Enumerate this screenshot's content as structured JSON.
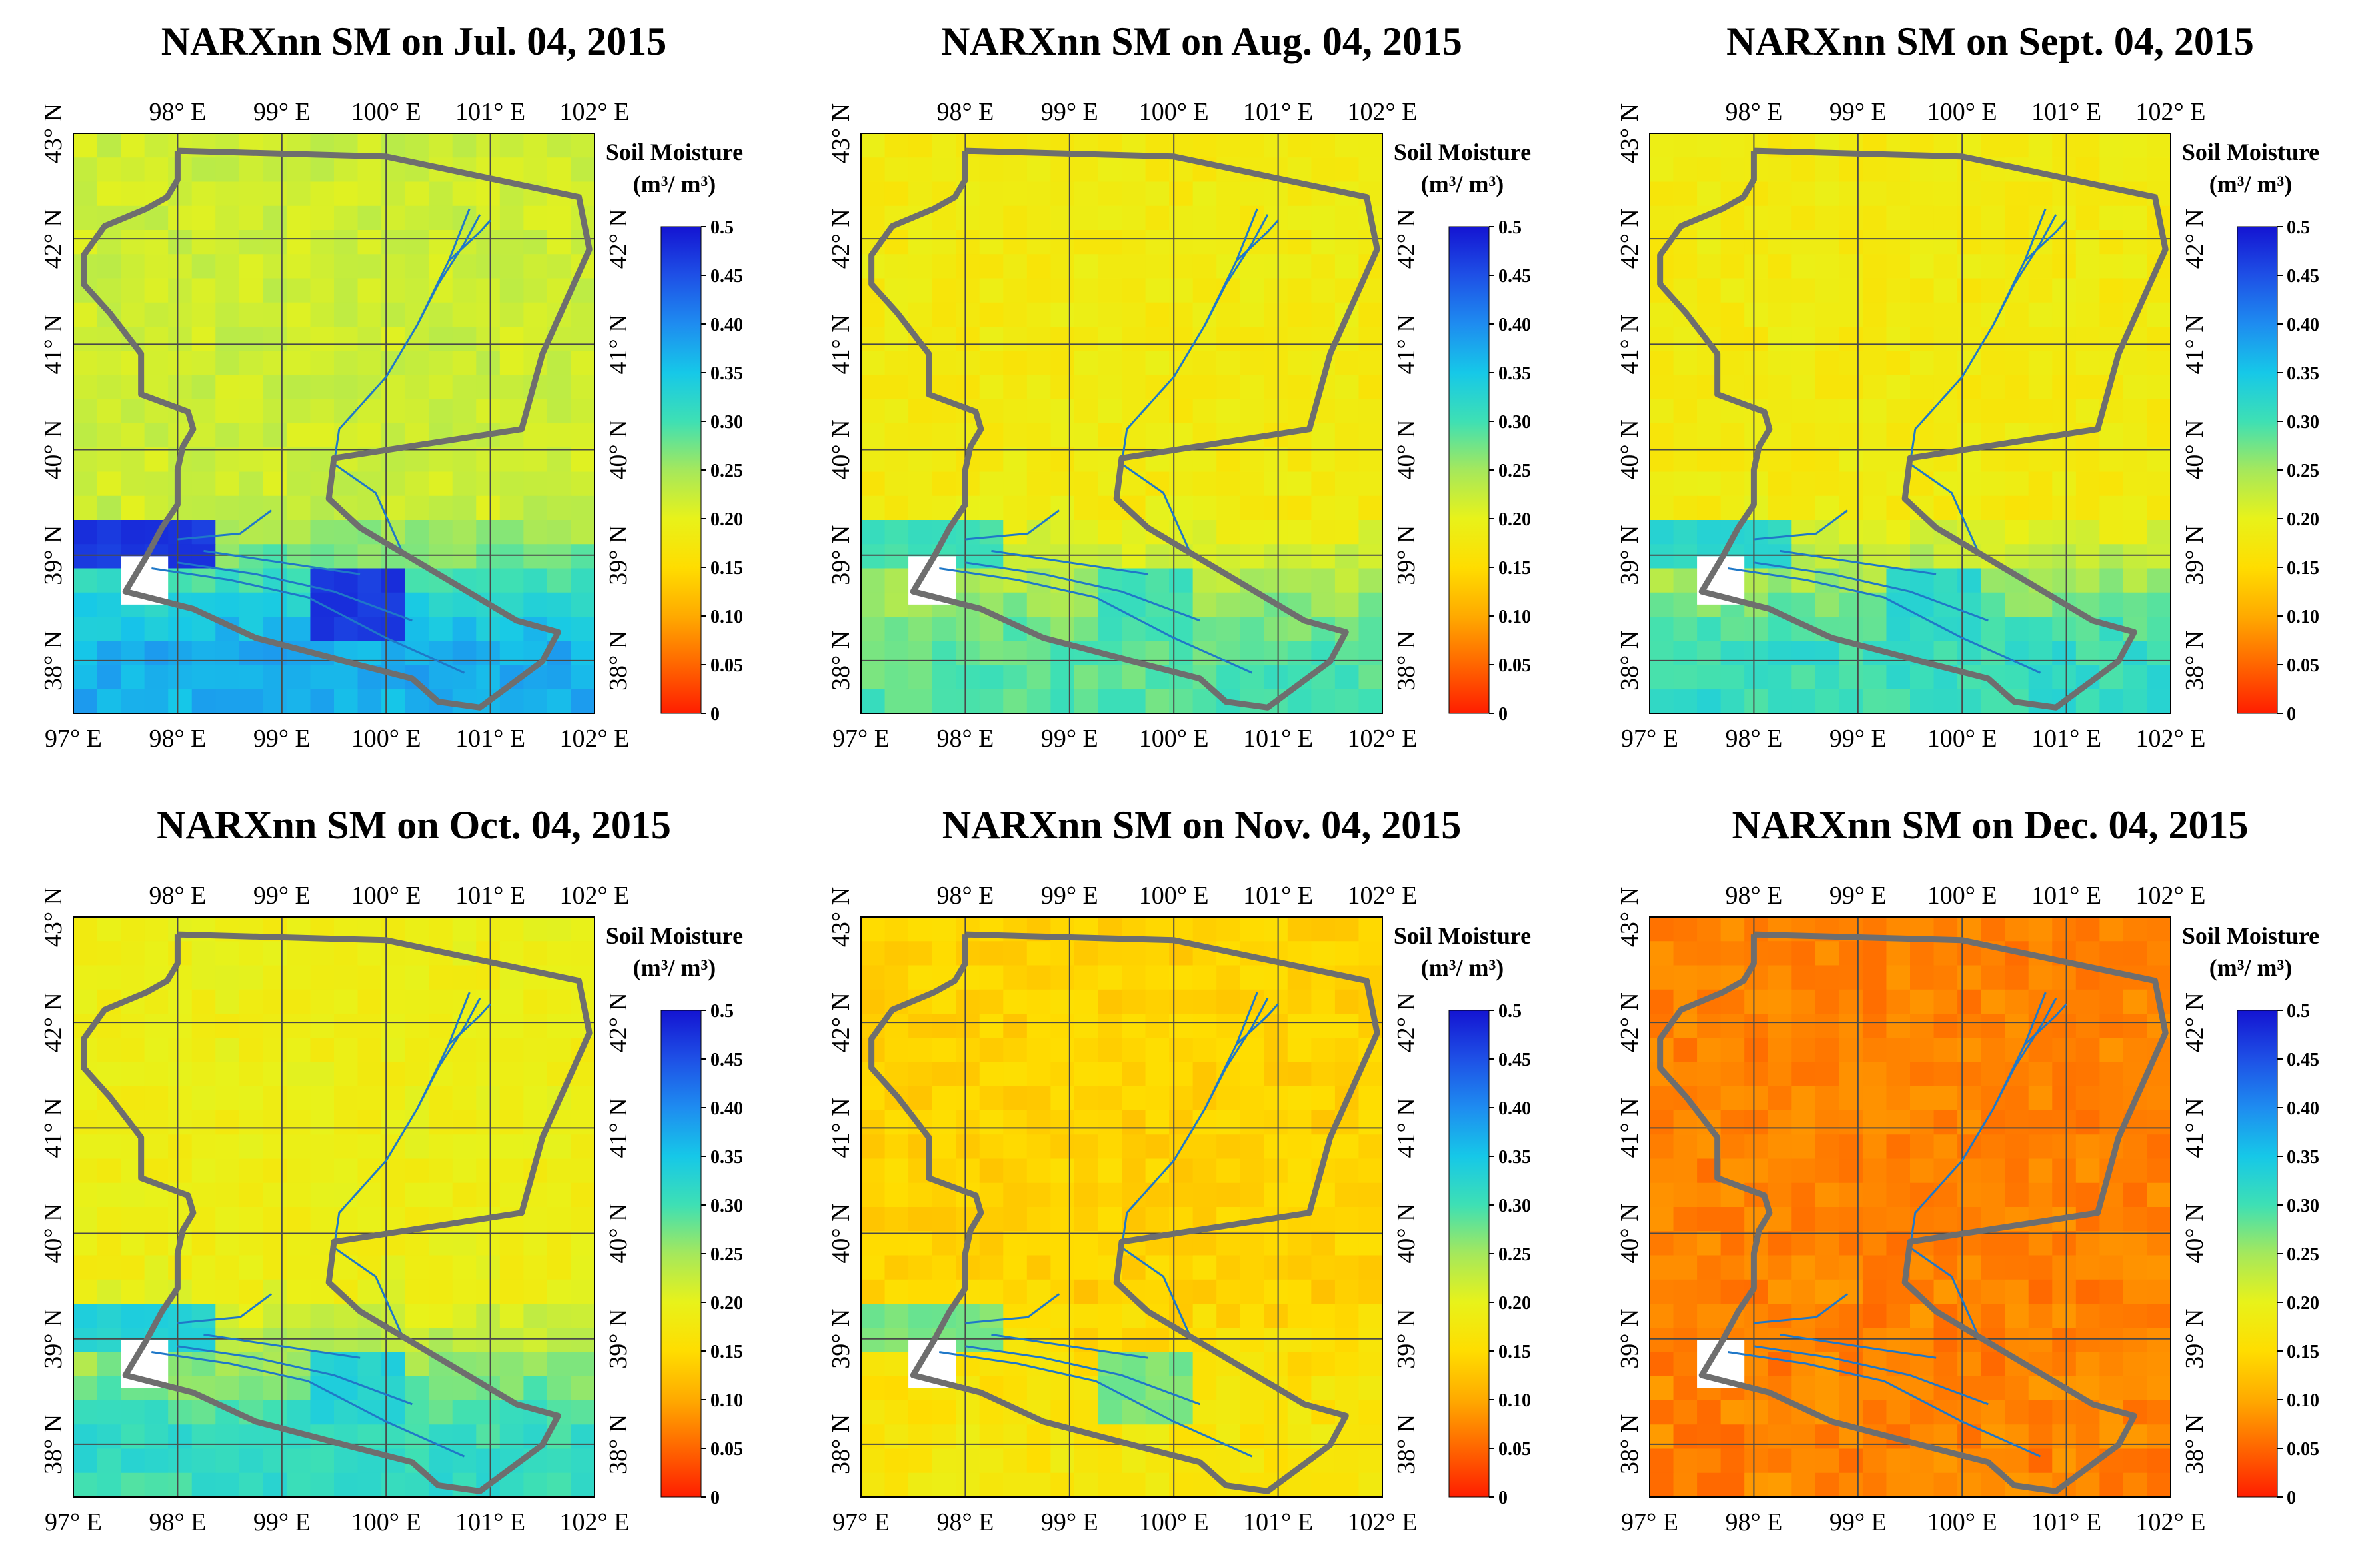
{
  "figure": {
    "colorbar_title": "Soil Moisture",
    "colorbar_unit": "(m³/ m³)",
    "colorbar_ticks": [
      "0",
      "0.05",
      "0.10",
      "0.15",
      "0.20",
      "0.25",
      "0.30",
      "0.35",
      "0.40",
      "0.45",
      "0.5"
    ],
    "lon_labels": [
      "97° E",
      "98° E",
      "99° E",
      "100° E",
      "101° E",
      "102° E"
    ],
    "lat_labels": [
      "38° N",
      "39° N",
      "40° N",
      "41° N",
      "42° N",
      "43° N"
    ],
    "colors": {
      "basin_outline": "#6e6e6e",
      "river": "#1f78c8",
      "grid": "#4a4a4a",
      "missing": "#ffffff",
      "colormap": [
        "#ff1e00",
        "#ff6600",
        "#ffaa00",
        "#ffdd00",
        "#e8f21a",
        "#a5e85c",
        "#3ee0b4",
        "#16c8e8",
        "#1e8cf0",
        "#1e50e6",
        "#1414d2"
      ]
    },
    "panels": [
      {
        "title": "NARXnn SM on Jul. 04, 2015",
        "mean_sm": 0.22,
        "south_sm": 0.37,
        "hot_sm": 0.47
      },
      {
        "title": "NARXnn SM on Aug. 04, 2015",
        "mean_sm": 0.18,
        "south_sm": 0.29,
        "hot_sm": 0.3
      },
      {
        "title": "NARXnn SM on Sept. 04, 2015",
        "mean_sm": 0.18,
        "south_sm": 0.31,
        "hot_sm": 0.32
      },
      {
        "title": "NARXnn SM on Oct. 04, 2015",
        "mean_sm": 0.19,
        "south_sm": 0.31,
        "hot_sm": 0.33
      },
      {
        "title": "NARXnn SM on Nov. 04, 2015",
        "mean_sm": 0.14,
        "south_sm": 0.17,
        "hot_sm": 0.27
      },
      {
        "title": "NARXnn SM on Dec. 04, 2015",
        "mean_sm": 0.07,
        "south_sm": 0.07,
        "hot_sm": 0.07
      }
    ]
  }
}
